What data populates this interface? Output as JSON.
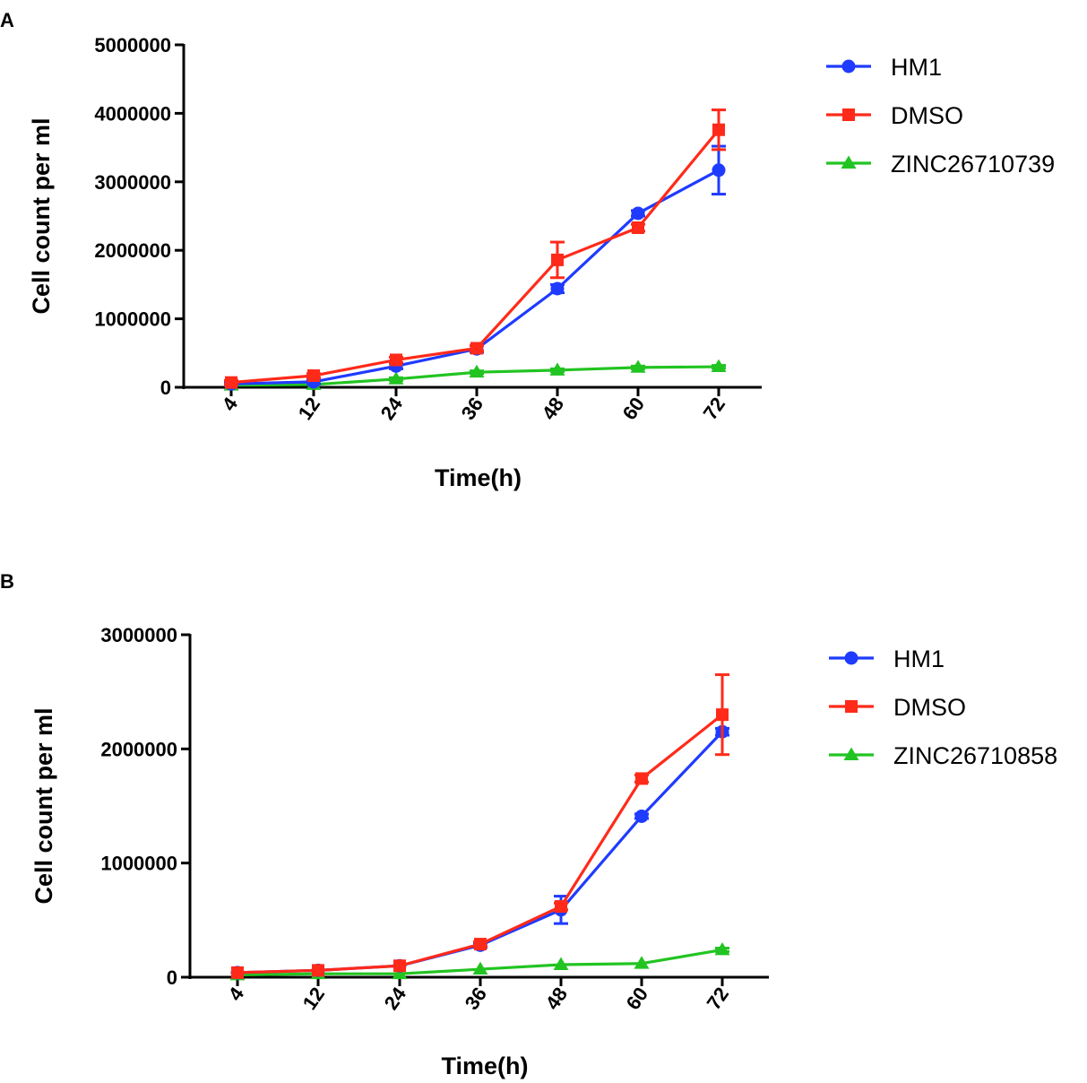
{
  "colors": {
    "hm1": "#1f3bff",
    "dmso": "#ff2a1a",
    "zinc": "#22c422",
    "axis": "#000000"
  },
  "chart_data": [
    {
      "panel_label": "A",
      "type": "line",
      "xlabel": "Time(h)",
      "ylabel": "Cell count per ml",
      "categories": [
        "4",
        "12",
        "24",
        "36",
        "48",
        "60",
        "72"
      ],
      "ylim": [
        0,
        5000000
      ],
      "yticks": [
        "0",
        "1000000",
        "2000000",
        "3000000",
        "4000000",
        "5000000"
      ],
      "legend_position": "right",
      "series": [
        {
          "name": "HM1",
          "marker": "circle",
          "color": "#1f3bff",
          "values": [
            50000,
            80000,
            310000,
            560000,
            1440000,
            2540000,
            3170000
          ],
          "errors": [
            30000,
            30000,
            40000,
            50000,
            60000,
            40000,
            350000
          ]
        },
        {
          "name": "DMSO",
          "marker": "square",
          "color": "#ff2a1a",
          "values": [
            70000,
            170000,
            400000,
            570000,
            1860000,
            2330000,
            3760000
          ],
          "errors": [
            30000,
            30000,
            40000,
            40000,
            260000,
            50000,
            290000
          ]
        },
        {
          "name": "ZINC26710739",
          "marker": "triangle",
          "color": "#22c422",
          "values": [
            30000,
            40000,
            120000,
            220000,
            250000,
            290000,
            300000
          ],
          "errors": [
            10000,
            10000,
            20000,
            20000,
            20000,
            20000,
            20000
          ]
        }
      ]
    },
    {
      "panel_label": "B",
      "type": "line",
      "xlabel": "Time(h)",
      "ylabel": "Cell count per ml",
      "categories": [
        "4",
        "12",
        "24",
        "36",
        "48",
        "60",
        "72"
      ],
      "ylim": [
        0,
        3000000
      ],
      "yticks": [
        "0",
        "1000000",
        "2000000",
        "3000000"
      ],
      "legend_position": "right",
      "series": [
        {
          "name": "HM1",
          "marker": "circle",
          "color": "#1f3bff",
          "values": [
            40000,
            60000,
            100000,
            280000,
            590000,
            1410000,
            2150000
          ],
          "errors": [
            10000,
            10000,
            10000,
            20000,
            120000,
            20000,
            30000
          ]
        },
        {
          "name": "DMSO",
          "marker": "square",
          "color": "#ff2a1a",
          "values": [
            40000,
            60000,
            100000,
            290000,
            620000,
            1740000,
            2300000
          ],
          "errors": [
            10000,
            10000,
            10000,
            20000,
            30000,
            30000,
            350000
          ]
        },
        {
          "name": "ZINC26710858",
          "marker": "triangle",
          "color": "#22c422",
          "values": [
            20000,
            30000,
            30000,
            70000,
            110000,
            120000,
            240000
          ],
          "errors": [
            5000,
            5000,
            5000,
            10000,
            10000,
            10000,
            15000
          ]
        }
      ]
    }
  ]
}
